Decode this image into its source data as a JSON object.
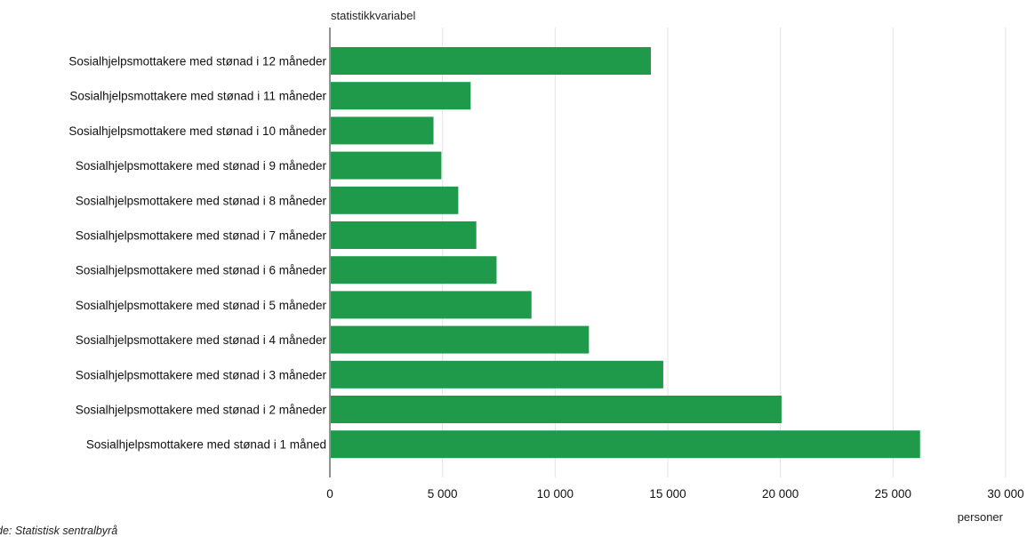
{
  "chart_data": {
    "type": "bar",
    "orientation": "horizontal",
    "y_axis_title": "statistikkvariabel",
    "x_axis_title": "personer",
    "categories": [
      "Sosialhjelpsmottakere med stønad i 12 måneder",
      "Sosialhjelpsmottakere med stønad i 11 måneder",
      "Sosialhjelpsmottakere med stønad i 10 måneder",
      "Sosialhjelpsmottakere med stønad i 9 måneder",
      "Sosialhjelpsmottakere med stønad i 8 måneder",
      "Sosialhjelpsmottakere med stønad i 7 måneder",
      "Sosialhjelpsmottakere med stønad i 6 måneder",
      "Sosialhjelpsmottakere med stønad i 5 måneder",
      "Sosialhjelpsmottakere med stønad i 4 måneder",
      "Sosialhjelpsmottakere med stønad i 3 måneder",
      "Sosialhjelpsmottakere med stønad i 2 måneder",
      "Sosialhjelpsmottakere med stønad i 1 måned"
    ],
    "values": [
      14250,
      6250,
      4600,
      4950,
      5700,
      6500,
      7400,
      8950,
      11500,
      14800,
      20050,
      26200
    ],
    "xlim": [
      0,
      30000
    ],
    "xticks": [
      0,
      5000,
      10000,
      15000,
      20000,
      25000,
      30000
    ],
    "xtick_labels": [
      "0",
      "5 000",
      "10 000",
      "15 000",
      "20 000",
      "25 000",
      "30 000"
    ],
    "grid": "vertical",
    "bar_color": "#1f9a4a"
  },
  "source_text": "de:  Statistisk sentralbyrå"
}
